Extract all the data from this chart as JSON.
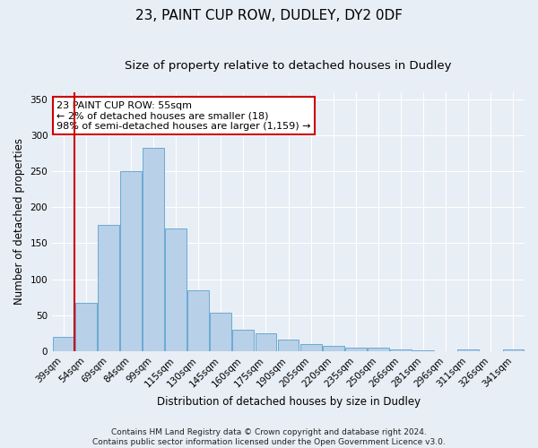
{
  "title": "23, PAINT CUP ROW, DUDLEY, DY2 0DF",
  "subtitle": "Size of property relative to detached houses in Dudley",
  "xlabel": "Distribution of detached houses by size in Dudley",
  "ylabel": "Number of detached properties",
  "categories": [
    "39sqm",
    "54sqm",
    "69sqm",
    "84sqm",
    "99sqm",
    "115sqm",
    "130sqm",
    "145sqm",
    "160sqm",
    "175sqm",
    "190sqm",
    "205sqm",
    "220sqm",
    "235sqm",
    "250sqm",
    "266sqm",
    "281sqm",
    "296sqm",
    "311sqm",
    "326sqm",
    "341sqm"
  ],
  "values": [
    20,
    67,
    175,
    250,
    282,
    170,
    85,
    53,
    30,
    25,
    16,
    10,
    7,
    5,
    5,
    3,
    1,
    0,
    3,
    0,
    3
  ],
  "bar_color": "#b8d0e8",
  "bar_edge_color": "#6aaad4",
  "ylim": [
    0,
    360
  ],
  "yticks": [
    0,
    50,
    100,
    150,
    200,
    250,
    300,
    350
  ],
  "vline_color": "#cc0000",
  "annotation_line1": "23 PAINT CUP ROW: 55sqm",
  "annotation_line2": "← 2% of detached houses are smaller (18)",
  "annotation_line3": "98% of semi-detached houses are larger (1,159) →",
  "annotation_box_color": "#ffffff",
  "annotation_box_edge": "#cc0000",
  "footer1": "Contains HM Land Registry data © Crown copyright and database right 2024.",
  "footer2": "Contains public sector information licensed under the Open Government Licence v3.0.",
  "bg_color": "#e8eef5",
  "plot_bg_color": "#e8eef5",
  "title_fontsize": 11,
  "subtitle_fontsize": 9.5,
  "axis_label_fontsize": 8.5,
  "tick_fontsize": 7.5,
  "annotation_fontsize": 8,
  "footer_fontsize": 6.5
}
